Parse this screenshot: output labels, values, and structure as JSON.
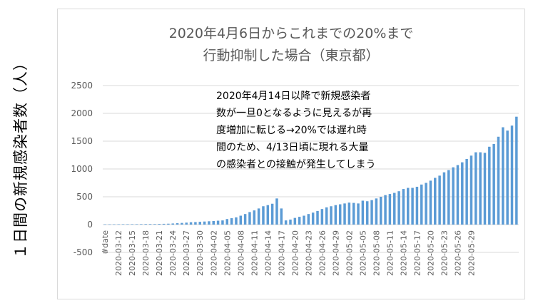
{
  "chart_data": {
    "type": "bar",
    "title_line1": "2020年4月6日からこれまでの20%まで",
    "title_line2": "行動抑制した場合（東京都）",
    "ylabel": "１日間の新規感染者数（人）",
    "xlabel": "",
    "ylim": [
      -500,
      2500
    ],
    "yticks": [
      "2500",
      "2000",
      "1500",
      "1000",
      "500",
      "0",
      "-500"
    ],
    "ytick_values": [
      2500,
      2000,
      1500,
      1000,
      500,
      0,
      -500
    ],
    "grid": true,
    "annotation": [
      "2020年4月14日以降で新規感染者",
      "数が一旦0となるように見えるが再",
      "度増加に転じる→20%では遅れ時",
      "間のため、4/13日頃に現れる大量",
      "の感染者との接触が発生してしまう"
    ],
    "series_color": "#5b9bd5",
    "x_tick_labels": [
      "#date",
      "2020-03-12",
      "2020-03-15",
      "2020-03-18",
      "2020-03-21",
      "2020-03-24",
      "2020-03-27",
      "2020-03-30",
      "2020-04-02",
      "2020-04-05",
      "2020-04-08",
      "2020-04-11",
      "2020-04-14",
      "2020-04-17",
      "2020-04-20",
      "2020-04-23",
      "2020-04-26",
      "2020-04-29",
      "2020-05-02",
      "2020-05-05",
      "2020-05-08",
      "2020-05-11",
      "2020-05-14",
      "2020-05-17",
      "2020-05-20",
      "2020-05-23",
      "2020-05-26",
      "2020-05-29"
    ],
    "x_tick_indices": [
      0,
      3,
      6,
      9,
      12,
      15,
      18,
      21,
      24,
      27,
      30,
      33,
      36,
      39,
      42,
      45,
      48,
      51,
      54,
      57,
      60,
      63,
      66,
      69,
      72,
      75,
      78,
      81
    ],
    "values": [
      5,
      5,
      5,
      6,
      7,
      7,
      8,
      8,
      9,
      10,
      10,
      10,
      12,
      14,
      16,
      20,
      25,
      30,
      35,
      42,
      45,
      50,
      55,
      60,
      65,
      70,
      75,
      100,
      115,
      130,
      160,
      190,
      225,
      255,
      290,
      330,
      350,
      375,
      470,
      290,
      75,
      90,
      120,
      140,
      160,
      190,
      215,
      245,
      280,
      310,
      330,
      350,
      365,
      380,
      395,
      390,
      380,
      430,
      420,
      440,
      470,
      500,
      530,
      550,
      570,
      600,
      640,
      660,
      660,
      680,
      720,
      750,
      790,
      840,
      880,
      940,
      980,
      1030,
      1070,
      1120,
      1180,
      1240,
      1300,
      1300,
      1290,
      1400,
      1450,
      1580,
      1750,
      1690,
      1780,
      1940
    ]
  }
}
